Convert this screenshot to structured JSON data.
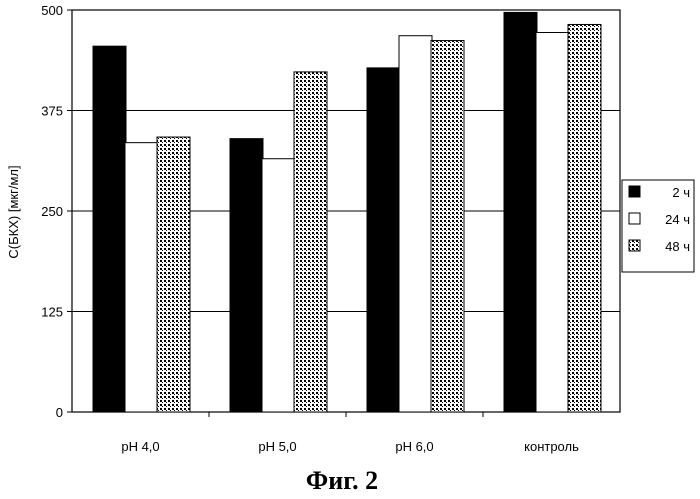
{
  "caption": "Фиг. 2",
  "chart_data": {
    "type": "bar",
    "title": "",
    "xlabel": "",
    "ylabel": "С(БКХ) [мкг/мл]",
    "ylim": [
      0,
      500
    ],
    "yticks": [
      0,
      125,
      250,
      375,
      500
    ],
    "grid": "horizontal",
    "legend_position": "right",
    "categories": [
      "pH 4,0",
      "pH 5,0",
      "pH 6,0",
      "контроль"
    ],
    "series": [
      {
        "name": "2 ч",
        "fill": "black",
        "values": [
          455,
          340,
          428,
          497
        ]
      },
      {
        "name": "24 ч",
        "fill": "white",
        "values": [
          335,
          315,
          468,
          472
        ]
      },
      {
        "name": "48 ч",
        "fill": "dotted",
        "values": [
          342,
          423,
          462,
          482
        ]
      }
    ]
  }
}
